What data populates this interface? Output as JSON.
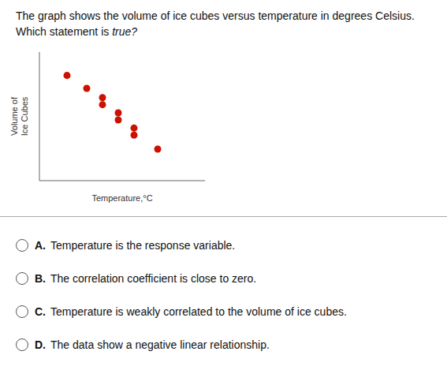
{
  "chart_data": {
    "type": "scatter",
    "title": "The graph shows the volume of ice cubes versus temperature in degrees Celsius. Which statement is true?",
    "x": [
      0.5,
      1.0,
      1.4,
      1.4,
      1.8,
      1.8,
      2.2,
      2.2,
      2.8
    ],
    "values": [
      8.5,
      7.4,
      6.6,
      6.0,
      5.3,
      4.7,
      4.0,
      3.4,
      2.2
    ],
    "color": "#cc1100",
    "xlabel": "Temperature,°C",
    "ylabel": "Volume of\nIce Cubes",
    "xlim": [
      -0.2,
      4.0
    ],
    "ylim": [
      -0.5,
      10.5
    ],
    "tick_labels": false,
    "grid": false,
    "annotations": [
      {
        "label": "A.",
        "text": "Temperature is the response variable."
      },
      {
        "label": "B.",
        "text": "The correlation coefficient is close to zero."
      },
      {
        "label": "C.",
        "text": "Temperature is weakly correlated to the volume of ice cubes."
      },
      {
        "label": "D.",
        "text": "The data show a negative linear relationship."
      }
    ]
  }
}
